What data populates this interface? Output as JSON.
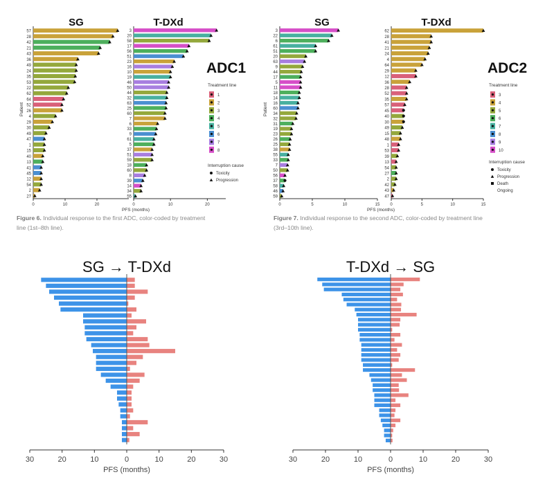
{
  "chart_data": [
    {
      "type": "bar",
      "title": "ADC1",
      "panel_titles": [
        "SG",
        "T-DXd"
      ],
      "ylabel": "Patient",
      "xlabel": "PFS (months)",
      "legend_treatment_title": "Treatment line",
      "legend_treatment": [
        "1",
        "2",
        "3",
        "4",
        "5",
        "6",
        "7",
        "8"
      ],
      "legend_cause_title": "Interruption cause",
      "legend_cause": [
        "Toxicity",
        "Progression"
      ],
      "colors": {
        "1": "#d9617a",
        "2": "#c9a23a",
        "3": "#94a83c",
        "4": "#4daf5c",
        "5": "#48b0a0",
        "6": "#4b8fd1",
        "7": "#a87ee0",
        "8": "#d64fc8"
      },
      "sg": {
        "xlim": [
          0,
          30
        ],
        "ticks": [
          0,
          10,
          20
        ],
        "patients": [
          "57",
          "28",
          "42",
          "21",
          "43",
          "36",
          "49",
          "24",
          "35",
          "53",
          "22",
          "62",
          "64",
          "52",
          "26",
          "4",
          "29",
          "30",
          "49",
          "47",
          "1",
          "15",
          "40",
          "13",
          "41",
          "45",
          "12",
          "54",
          "2",
          "27"
        ],
        "values": [
          26.5,
          25,
          24,
          21,
          20.5,
          14,
          13.5,
          13.5,
          13.2,
          13,
          11,
          10.5,
          9.5,
          9,
          9,
          7,
          6,
          5,
          4,
          3.5,
          3.5,
          3.5,
          3,
          3,
          2.5,
          2.5,
          2.5,
          2.5,
          2,
          0.5
        ],
        "lines": [
          2,
          2,
          4,
          4,
          2,
          2,
          3,
          3,
          3,
          3,
          3,
          3,
          1,
          1,
          2,
          3,
          2,
          3,
          3,
          6,
          3,
          3,
          2,
          4,
          6,
          6,
          2,
          3,
          2,
          2
        ],
        "cause": [
          "P",
          "P",
          "P",
          "P",
          "P",
          "P",
          "P",
          "P",
          "P",
          "P",
          "P",
          "P",
          "P",
          "P",
          "P",
          "P",
          "P",
          "P",
          "P",
          "P",
          "P",
          "P",
          "P",
          "P",
          "P",
          "P",
          "P",
          "P",
          "P",
          "P"
        ]
      },
      "tdxd": {
        "xlim": [
          0,
          25
        ],
        "ticks": [
          0,
          10,
          20
        ],
        "patients": [
          "3",
          "20",
          "58",
          "17",
          "56",
          "51",
          "23",
          "16",
          "10",
          "19",
          "46",
          "50",
          "44",
          "32",
          "63",
          "25",
          "60",
          "7",
          "6",
          "33",
          "9",
          "61",
          "5",
          "37",
          "51",
          "59",
          "18",
          "60",
          "8",
          "39",
          "14",
          "34",
          "55"
        ],
        "values": [
          22.5,
          21,
          20.5,
          15,
          14.5,
          13.5,
          11,
          10.5,
          10,
          10,
          9.5,
          9.5,
          9,
          9,
          8.8,
          8.8,
          8.5,
          8.5,
          6.5,
          6.2,
          6,
          5.5,
          5.5,
          5,
          5,
          5,
          3.5,
          3.5,
          3,
          2.5,
          2,
          2,
          0.5
        ],
        "lines": [
          8,
          5,
          3,
          8,
          4,
          6,
          2,
          7,
          2,
          5,
          7,
          7,
          3,
          5,
          6,
          4,
          3,
          2,
          2,
          4,
          6,
          5,
          4,
          2,
          7,
          3,
          4,
          3,
          7,
          6,
          8,
          3,
          5
        ],
        "cause": [
          "P",
          "P",
          "P",
          "P",
          "P",
          "P",
          "P",
          "P",
          "P",
          "P",
          "P",
          "P",
          "P",
          "P",
          "P",
          "P",
          "P",
          "P",
          "P",
          "P",
          "P",
          "P",
          "P",
          "P",
          "P",
          "P",
          "P",
          "P",
          "P",
          "P",
          "P",
          "P",
          "P"
        ]
      }
    },
    {
      "type": "bar",
      "title": "ADC2",
      "panel_titles": [
        "SG",
        "T-DXd"
      ],
      "ylabel": "Patient",
      "xlabel": "PFS (months)",
      "legend_treatment_title": "Treatment line",
      "legend_treatment": [
        "3",
        "4",
        "5",
        "6",
        "7",
        "8",
        "9",
        "10"
      ],
      "legend_cause_title": "Interruption cause",
      "legend_cause": [
        "Toxicity",
        "Progression",
        "Death",
        "Ongoing"
      ],
      "colors": {
        "3": "#d9617a",
        "4": "#c9a23a",
        "5": "#94a83c",
        "6": "#4daf5c",
        "7": "#48b0a0",
        "8": "#4b8fd1",
        "9": "#a87ee0",
        "10": "#d64fc8"
      },
      "sg": {
        "xlim": [
          0,
          15
        ],
        "ticks": [
          0,
          5,
          10,
          15
        ],
        "patients": [
          "3",
          "22",
          "6",
          "61",
          "51",
          "20",
          "63",
          "9",
          "44",
          "17",
          "5",
          "11",
          "18",
          "14",
          "16",
          "60",
          "34",
          "32",
          "31",
          "19",
          "23",
          "26",
          "25",
          "38",
          "55",
          "33",
          "7",
          "50",
          "56",
          "37",
          "58",
          "46",
          "59"
        ],
        "values": [
          9,
          8,
          7.5,
          5.5,
          5.5,
          4,
          3.8,
          3.5,
          3.3,
          3.2,
          3.2,
          3.2,
          3,
          3,
          2.8,
          2.8,
          2.6,
          2.5,
          2,
          1.8,
          1.8,
          1.6,
          1.5,
          1.5,
          1.3,
          1.3,
          1.2,
          1.2,
          0.8,
          0.8,
          0.6,
          0.5,
          0.3
        ],
        "lines": [
          10,
          7,
          6,
          7,
          6,
          5,
          9,
          5,
          5,
          6,
          10,
          10,
          6,
          7,
          7,
          8,
          5,
          5,
          6,
          5,
          5,
          6,
          5,
          4,
          7,
          6,
          9,
          5,
          10,
          6,
          7,
          8,
          5
        ],
        "cause": [
          "P",
          "P",
          "P",
          "P",
          "P",
          "P",
          "P",
          "P",
          "P",
          "P",
          "P",
          "P",
          "P",
          "P",
          "P",
          "P",
          "P",
          "P",
          "P",
          "P",
          "P",
          "P",
          "P",
          "P",
          "P",
          "P",
          "P",
          "P",
          "P",
          "T",
          "P",
          "P",
          "P"
        ]
      },
      "tdxd": {
        "xlim": [
          0,
          15
        ],
        "ticks": [
          0,
          5,
          10,
          15
        ],
        "patients": [
          "62",
          "28",
          "41",
          "21",
          "24",
          "4",
          "64",
          "29",
          "12",
          "36",
          "28",
          "52",
          "35",
          "57",
          "45",
          "40",
          "30",
          "49",
          "15",
          "48",
          "1",
          "53",
          "39",
          "13",
          "54",
          "27",
          "2",
          "42",
          "43",
          "47"
        ],
        "values": [
          15,
          6.5,
          6.5,
          6.2,
          6,
          5.5,
          5,
          4,
          4,
          3,
          2.5,
          2.5,
          2.5,
          2.2,
          2,
          2,
          2,
          1.8,
          1.5,
          1.5,
          1.2,
          1.2,
          1,
          0.8,
          0.8,
          0.8,
          0.8,
          0.6,
          0.4,
          0.2
        ],
        "lines": [
          4,
          4,
          4,
          4,
          4,
          4,
          4,
          4,
          3,
          4,
          3,
          3,
          4,
          3,
          3,
          5,
          4,
          5,
          5,
          4,
          3,
          3,
          5,
          3,
          5,
          6,
          5,
          5,
          4,
          3
        ],
        "cause": [
          "P",
          "P",
          "P",
          "P",
          "P",
          "P",
          "P",
          "P",
          "P",
          "P",
          "P",
          "P",
          "P",
          "P",
          "T",
          "T",
          "T",
          "P",
          "P",
          "P",
          "P",
          "P",
          "P",
          "P",
          "P",
          "P",
          "P",
          "P",
          "P",
          "P"
        ]
      }
    },
    {
      "type": "bar",
      "title": "SG → T-DXd",
      "xlabel": "PFS (months)",
      "xlim": [
        -30,
        30
      ],
      "ticks": [
        30,
        20,
        10,
        0,
        10,
        20,
        30
      ],
      "series": [
        {
          "name": "SG",
          "color": "#3d93e8",
          "values": [
            26.5,
            25,
            24,
            22.5,
            21,
            20.5,
            13.5,
            13.5,
            13,
            13,
            12.5,
            11,
            10.5,
            9.5,
            9.5,
            9.5,
            8,
            6.5,
            5,
            3,
            3,
            2.5,
            2,
            2,
            1.5,
            1.5,
            1.5,
            1.5
          ]
        },
        {
          "name": "T-DXd",
          "color": "#e8837f",
          "values": [
            2.5,
            2.5,
            6.5,
            2.5,
            0.5,
            3,
            1.5,
            6,
            3,
            2,
            6.5,
            7,
            15,
            5,
            3,
            1,
            5.5,
            4,
            2,
            1.5,
            1.5,
            1.5,
            2,
            1,
            6.5,
            2,
            4,
            0.8
          ]
        }
      ]
    },
    {
      "type": "bar",
      "title": "T-DXd → SG",
      "xlabel": "PFS (months)",
      "xlim": [
        -30,
        30
      ],
      "ticks": [
        30,
        20,
        10,
        0,
        10,
        20,
        30
      ],
      "series": [
        {
          "name": "T-DXd",
          "color": "#3d93e8",
          "values": [
            22.5,
            21,
            20.5,
            15,
            14.5,
            13.5,
            11,
            10.5,
            10,
            10,
            10,
            9.5,
            9.5,
            9,
            9,
            9,
            9,
            8.5,
            8.5,
            6.5,
            6,
            5.5,
            5.5,
            5,
            5,
            5,
            3.5,
            3.5,
            3,
            2.5,
            2,
            2,
            1.5
          ]
        },
        {
          "name": "SG",
          "color": "#e8837f",
          "values": [
            9,
            4,
            3,
            3.8,
            2,
            3.3,
            3.2,
            8,
            3,
            2.8,
            0.5,
            3,
            1.2,
            3.5,
            2,
            3,
            2.5,
            0.5,
            7.5,
            3.5,
            5,
            2.5,
            2.6,
            5.5,
            1.5,
            3,
            1.5,
            1.2,
            3,
            1.5,
            0.8,
            0.5,
            0.6
          ]
        }
      ]
    }
  ],
  "captions": [
    {
      "label": "Figure 6.",
      "rest": " Individual response to the first ADC, color-coded by treatment",
      "line2": "line (1st–8th line)."
    },
    {
      "label": "Figure 7.",
      "rest": " Individual response to the second ADC, color-coded by treatment line",
      "line2": "(3rd–10th line)."
    }
  ]
}
